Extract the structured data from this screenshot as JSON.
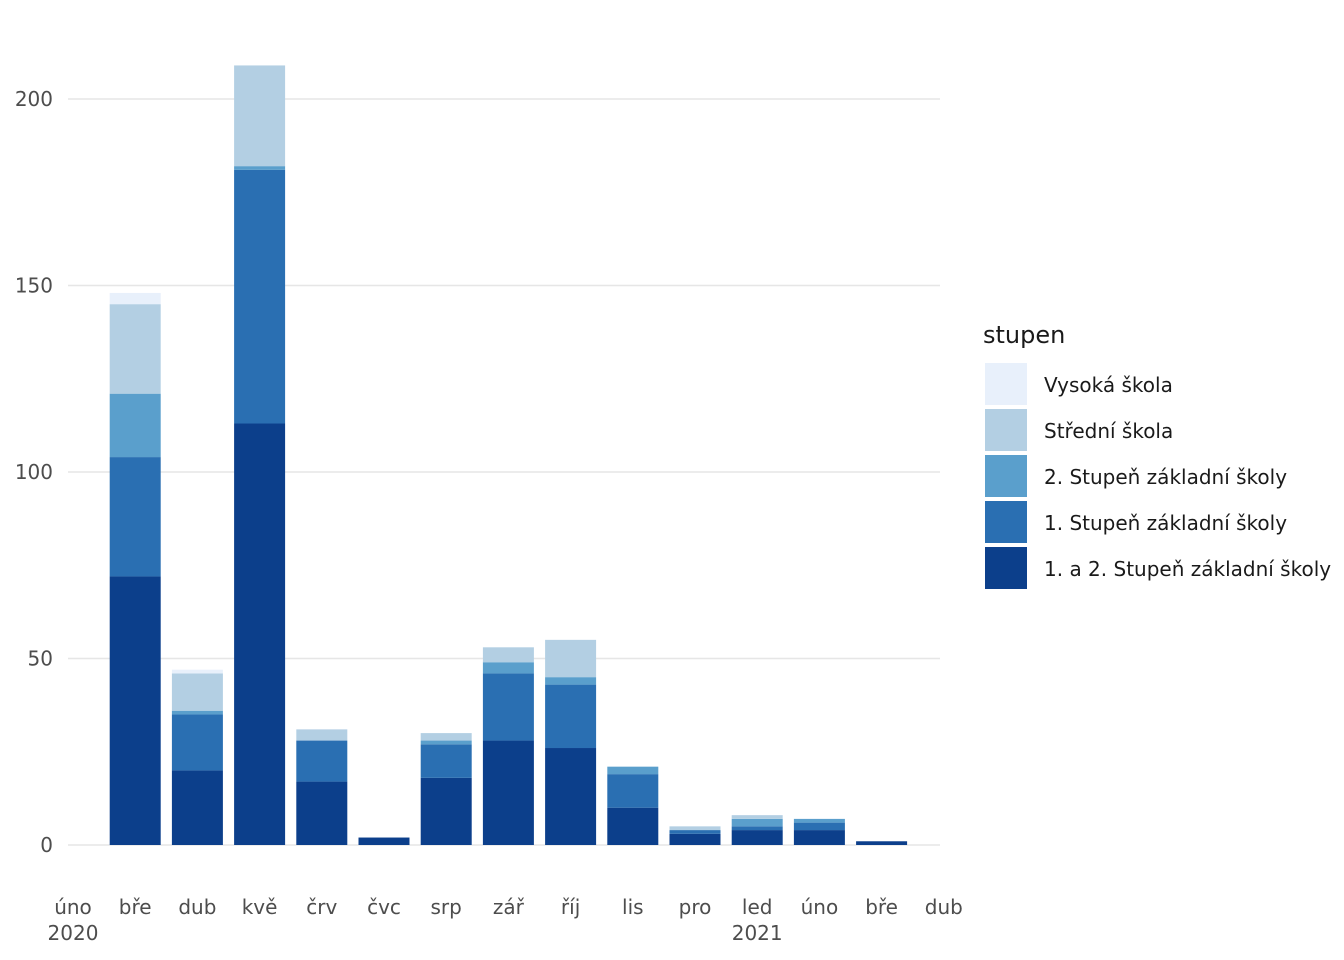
{
  "chart_data": {
    "type": "bar",
    "stacked": true,
    "x": [
      "2020-03",
      "2020-04",
      "2020-05",
      "2020-06",
      "2020-07",
      "2020-08",
      "2020-09",
      "2020-10",
      "2020-11",
      "2020-12",
      "2021-01",
      "2021-02",
      "2021-03"
    ],
    "x_ticks": [
      {
        "date": "2020-02",
        "label": "úno",
        "year": "2020"
      },
      {
        "date": "2020-03",
        "label": "bře",
        "year": ""
      },
      {
        "date": "2020-04",
        "label": "dub",
        "year": ""
      },
      {
        "date": "2020-05",
        "label": "kvě",
        "year": ""
      },
      {
        "date": "2020-06",
        "label": "črv",
        "year": ""
      },
      {
        "date": "2020-07",
        "label": "čvc",
        "year": ""
      },
      {
        "date": "2020-08",
        "label": "srp",
        "year": ""
      },
      {
        "date": "2020-09",
        "label": "zář",
        "year": ""
      },
      {
        "date": "2020-10",
        "label": "říj",
        "year": ""
      },
      {
        "date": "2020-11",
        "label": "lis",
        "year": ""
      },
      {
        "date": "2020-12",
        "label": "pro",
        "year": ""
      },
      {
        "date": "2021-01",
        "label": "led",
        "year": "2021"
      },
      {
        "date": "2021-02",
        "label": "úno",
        "year": ""
      },
      {
        "date": "2021-03",
        "label": "bře",
        "year": ""
      },
      {
        "date": "2021-04",
        "label": "dub",
        "year": ""
      }
    ],
    "y_ticks": [
      0,
      50,
      100,
      150,
      200
    ],
    "ylim": [
      0,
      210
    ],
    "grid": true,
    "legend": {
      "title": "stupen",
      "position": "right"
    },
    "series": [
      {
        "name": "1. a 2. Stupeň základní školy",
        "color": "#0c3f8b",
        "values": [
          72,
          20,
          113,
          17,
          2,
          18,
          28,
          26,
          10,
          3,
          4,
          4,
          1
        ]
      },
      {
        "name": "1. Stupeň základní školy",
        "color": "#2a6fb2",
        "values": [
          32,
          15,
          68,
          11,
          0,
          9,
          18,
          17,
          9,
          1,
          1,
          2,
          0
        ]
      },
      {
        "name": "2. Stupeň základní školy",
        "color": "#5a9fcc",
        "values": [
          17,
          1,
          1,
          0,
          0,
          1,
          3,
          2,
          2,
          0,
          2,
          1,
          0
        ]
      },
      {
        "name": "Střední škola",
        "color": "#b3cfe3",
        "values": [
          24,
          10,
          27,
          3,
          0,
          2,
          4,
          10,
          0,
          1,
          1,
          0,
          0
        ]
      },
      {
        "name": "Vysoká škola",
        "color": "#e8f0fb",
        "values": [
          3,
          1,
          0,
          0,
          0,
          0,
          0,
          0,
          0,
          0,
          0,
          0,
          0
        ]
      }
    ]
  }
}
